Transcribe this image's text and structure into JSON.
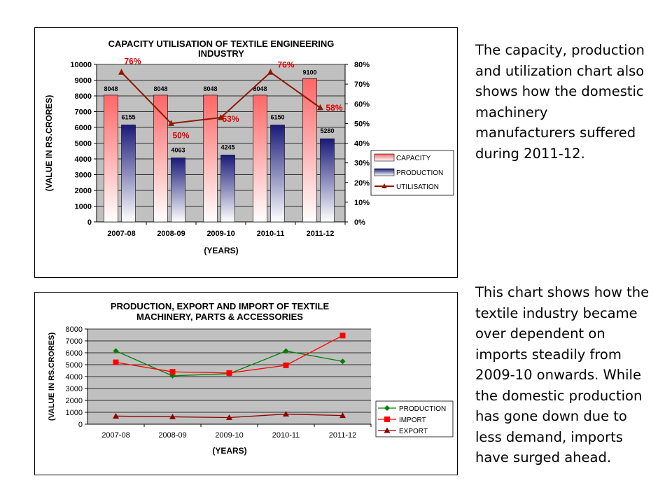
{
  "paragraphs": [
    "The capacity, production and utilization chart also shows how the domestic machinery manufacturers suffered during 2011-12.",
    "This chart shows how the textile industry became over dependent on imports steadily from 2009-10 onwards. While the domestic production has gone down due to less demand, imports have surged ahead."
  ],
  "colors": {
    "capacity": "#ff6666",
    "production": "#1a1a7a",
    "utilisation": "#8b1a00",
    "label_red": "#e00000",
    "plot_bg": "#c0c0c0",
    "line_production": "#008000",
    "line_import": "#ff0000",
    "line_export": "#8b0000"
  },
  "chart_data": [
    {
      "type": "bar",
      "title": "CAPACITY UTILISATION OF TEXTILE ENGINEERING INDUSTRY",
      "xlabel": "(YEARS)",
      "ylabel": "(VALUE IN RS.CRORES)",
      "categories": [
        "2007-08",
        "2008-09",
        "2009-10",
        "2010-11",
        "2011-12"
      ],
      "ylim": [
        0,
        10000
      ],
      "yticks": [
        "0",
        "1000",
        "2000",
        "3000",
        "4000",
        "5000",
        "6000",
        "7000",
        "8000",
        "9000",
        "10000"
      ],
      "y2lim": [
        0,
        80
      ],
      "y2ticks": [
        "0%",
        "10%",
        "20%",
        "30%",
        "40%",
        "50%",
        "60%",
        "70%",
        "80%"
      ],
      "series": [
        {
          "name": "CAPACITY",
          "values": [
            8048,
            8048,
            8048,
            8048,
            9100
          ],
          "labels": [
            "8048",
            "8048",
            "8048",
            "8048",
            "9100"
          ]
        },
        {
          "name": "PRODUCTION",
          "values": [
            6155,
            4063,
            4245,
            6150,
            5280
          ],
          "labels": [
            "6155",
            "4063",
            "4245",
            "6150",
            "5280"
          ]
        },
        {
          "name": "UTILISATION",
          "type": "line",
          "axis": "right",
          "values": [
            76,
            50,
            53,
            76,
            58
          ],
          "labels": [
            "76%",
            "50%",
            "53%",
            "76%",
            "58%"
          ]
        }
      ],
      "grid": true,
      "legend": "right"
    },
    {
      "type": "line",
      "title": "PRODUCTION, EXPORT AND IMPORT OF TEXTILE MACHINERY, PARTS & ACCESSORIES",
      "xlabel": "(YEARS)",
      "ylabel": "(VALUE IN RS.CRORES)",
      "categories": [
        "2007-08",
        "2008-09",
        "2009-10",
        "2010-11",
        "2011-12"
      ],
      "ylim": [
        0,
        8000
      ],
      "yticks": [
        "0",
        "1000",
        "2000",
        "3000",
        "4000",
        "5000",
        "6000",
        "7000",
        "8000"
      ],
      "series": [
        {
          "name": "PRODUCTION",
          "values": [
            6155,
            4063,
            4245,
            6150,
            5280
          ]
        },
        {
          "name": "IMPORT",
          "values": [
            5200,
            4400,
            4300,
            4950,
            7450
          ]
        },
        {
          "name": "EXPORT",
          "values": [
            680,
            620,
            560,
            850,
            730
          ]
        }
      ],
      "grid": true,
      "legend": "right"
    }
  ]
}
